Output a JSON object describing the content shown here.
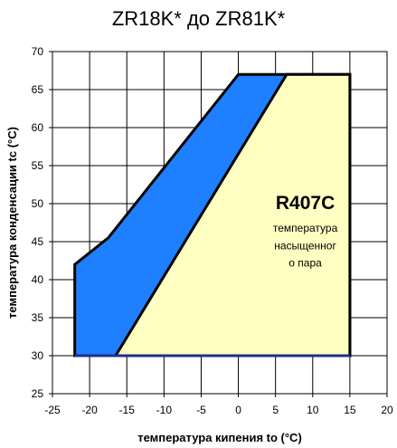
{
  "chart_data": {
    "type": "area",
    "title": "ZR18K* до ZR81K*",
    "xlabel": "температура кипения to (°C)",
    "ylabel": "температура конденсации tc (°C)",
    "xlim": [
      -25,
      20
    ],
    "ylim": [
      25,
      70
    ],
    "x_ticks": [
      "-25",
      "-20",
      "-15",
      "-10",
      "-5",
      "0",
      "5",
      "10",
      "15",
      "20"
    ],
    "y_ticks": [
      "25",
      "30",
      "35",
      "40",
      "45",
      "50",
      "55",
      "60",
      "65",
      "70"
    ],
    "grid": true,
    "colors": {
      "outer_envelope": "#1e7fff",
      "inner_envelope": "#ffffc2",
      "outline": "#000000"
    },
    "series": [
      {
        "role": "outer_envelope",
        "points": [
          [
            -22,
            30
          ],
          [
            -22,
            42
          ],
          [
            -17.5,
            45.5
          ],
          [
            0,
            67
          ],
          [
            15,
            67
          ],
          [
            15,
            30
          ]
        ]
      },
      {
        "role": "inner_envelope",
        "points": [
          [
            -16.5,
            30
          ],
          [
            6.5,
            67
          ],
          [
            15,
            67
          ],
          [
            15,
            30
          ]
        ]
      }
    ],
    "annotation": {
      "refrigerant": "R407C",
      "line1": "температура",
      "line2": "насыщенног",
      "line3": "о пара"
    }
  }
}
